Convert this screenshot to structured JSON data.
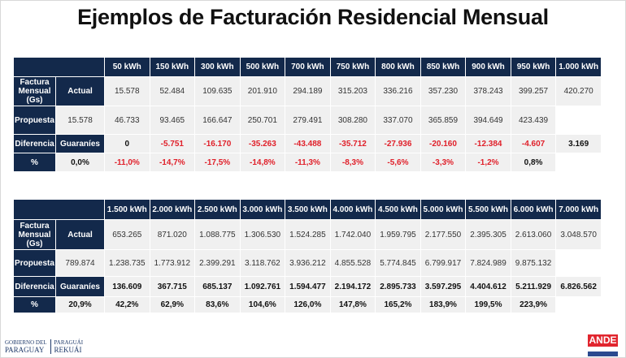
{
  "title": "Ejemplos de Facturación Residencial Mensual",
  "row_labels": {
    "factura": "Factura Mensual (Gs)",
    "actual": "Actual",
    "propuesta": "Propuesta",
    "diferencia": "Diferencia",
    "guaranies": "Guaraníes",
    "percent": "%"
  },
  "tables": [
    {
      "columns": [
        "50 kWh",
        "150 kWh",
        "300 kWh",
        "500 kWh",
        "700 kWh",
        "750 kWh",
        "800 kWh",
        "850 kWh",
        "900 kWh",
        "950 kWh",
        "1.000 kWh"
      ],
      "actual": [
        "15.578",
        "52.484",
        "109.635",
        "201.910",
        "294.189",
        "315.203",
        "336.216",
        "357.230",
        "378.243",
        "399.257",
        "420.270"
      ],
      "propuesta": [
        "15.578",
        "46.733",
        "93.465",
        "166.647",
        "250.701",
        "279.491",
        "308.280",
        "337.070",
        "365.859",
        "394.649",
        "423.439"
      ],
      "guaranies": [
        "0",
        "-5.751",
        "-16.170",
        "-35.263",
        "-43.488",
        "-35.712",
        "-27.936",
        "-20.160",
        "-12.384",
        "-4.607",
        "3.169"
      ],
      "percent": [
        "0,0%",
        "-11,0%",
        "-14,7%",
        "-17,5%",
        "-14,8%",
        "-11,3%",
        "-8,3%",
        "-5,6%",
        "-3,3%",
        "-1,2%",
        "0,8%"
      ]
    },
    {
      "columns": [
        "1.500 kWh",
        "2.000 kWh",
        "2.500 kWh",
        "3.000 kWh",
        "3.500 kWh",
        "4.000 kWh",
        "4.500 kWh",
        "5.000 kWh",
        "5.500 kWh",
        "6.000 kWh",
        "7.000 kWh"
      ],
      "actual": [
        "653.265",
        "871.020",
        "1.088.775",
        "1.306.530",
        "1.524.285",
        "1.742.040",
        "1.959.795",
        "2.177.550",
        "2.395.305",
        "2.613.060",
        "3.048.570"
      ],
      "propuesta": [
        "789.874",
        "1.238.735",
        "1.773.912",
        "2.399.291",
        "3.118.762",
        "3.936.212",
        "4.855.528",
        "5.774.845",
        "6.799.917",
        "7.824.989",
        "9.875.132"
      ],
      "guaranies": [
        "136.609",
        "367.715",
        "685.137",
        "1.092.761",
        "1.594.477",
        "2.194.172",
        "2.895.733",
        "3.597.295",
        "4.404.612",
        "5.211.929",
        "6.826.562"
      ],
      "percent": [
        "20,9%",
        "42,2%",
        "62,9%",
        "83,6%",
        "104,6%",
        "126,0%",
        "147,8%",
        "165,2%",
        "183,9%",
        "199,5%",
        "223,9%"
      ]
    }
  ],
  "footer": {
    "gov_line1a": "GOBIERNO DEL",
    "gov_line1b": "PARAGUAY",
    "gov_line2a": "PARAGUÁI",
    "gov_line2b": "REKUÁI",
    "ande": "ANDE"
  },
  "colors": {
    "header_bg": "#13294b",
    "negative": "#e0202a",
    "cell_bg": "#f0f0f0",
    "ande_red": "#e1252e"
  }
}
